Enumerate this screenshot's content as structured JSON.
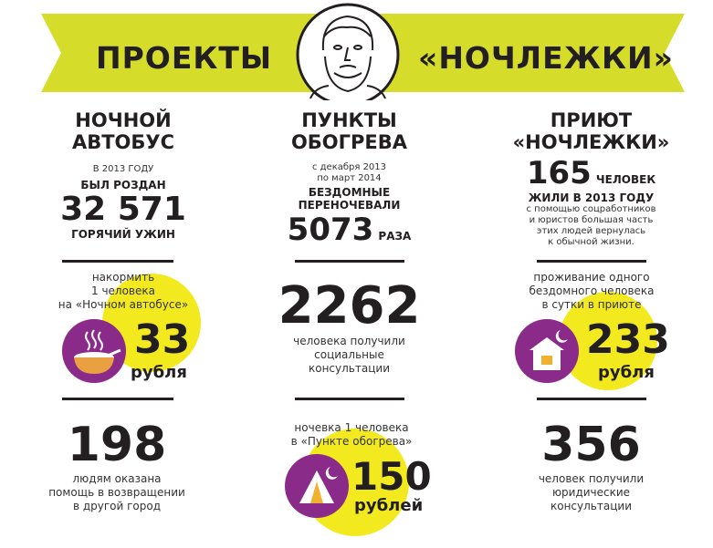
{
  "banner": {
    "title_left": "ПРОЕКТЫ",
    "title_right": "«НОЧЛЕЖКИ»",
    "color": "#d6dc2a"
  },
  "colors": {
    "accent_yellow": "#f2ea1f",
    "accent_purple": "#8a2b8a",
    "text": "#231f20"
  },
  "col1": {
    "heading": [
      "НОЧНОЙ",
      "АВТОБУС"
    ],
    "intro_small": "В 2013 ГОДУ",
    "intro_bold": "БЫЛ РОЗДАН",
    "number": "32 571",
    "number_caption": "ГОРЯЧИЙ УЖИН",
    "feed_text": [
      "накормить",
      "1 человека",
      "на «Ночном автобусе»"
    ],
    "price": "33",
    "price_unit": "рубля",
    "icon": "soup-bowl-icon",
    "stat": "198",
    "stat_text": [
      "людям оказана",
      "помощь в возвращении",
      "в другой город"
    ]
  },
  "col2": {
    "heading": [
      "ПУНКТЫ",
      "ОБОГРЕВА"
    ],
    "dates": [
      "с декабря 2013",
      "по март 2014"
    ],
    "bold": [
      "БЕЗДОМНЫЕ",
      "ПЕРЕНОЧЕВАЛИ"
    ],
    "number": "5073",
    "number_unit": "РАЗА",
    "stat": "2262",
    "stat_text": [
      "человека получили",
      "социальные",
      "консультации"
    ],
    "night_text": [
      "ночевка 1 человека",
      "в «Пункте обогрева»"
    ],
    "price": "150",
    "price_unit": "рублей",
    "icon": "tent-moon-icon"
  },
  "col3": {
    "heading": [
      "ПРИЮТ",
      "«НОЧЛЕЖКИ»"
    ],
    "number": "165",
    "number_unit": "ЧЕЛОВЕК",
    "bold": "ЖИЛИ В 2013 ГОДУ",
    "small": [
      "с помощью соцработников",
      "и юристов большая часть",
      "этих людей вернулась",
      "к обычной жизни."
    ],
    "stay_text": [
      "проживание одного",
      "бездомного человека",
      "в сутки в приюте"
    ],
    "price": "233",
    "price_unit": "рубля",
    "icon": "house-moon-icon",
    "stat": "356",
    "stat_text": [
      "человек получили",
      "юридические",
      "консультации"
    ]
  }
}
